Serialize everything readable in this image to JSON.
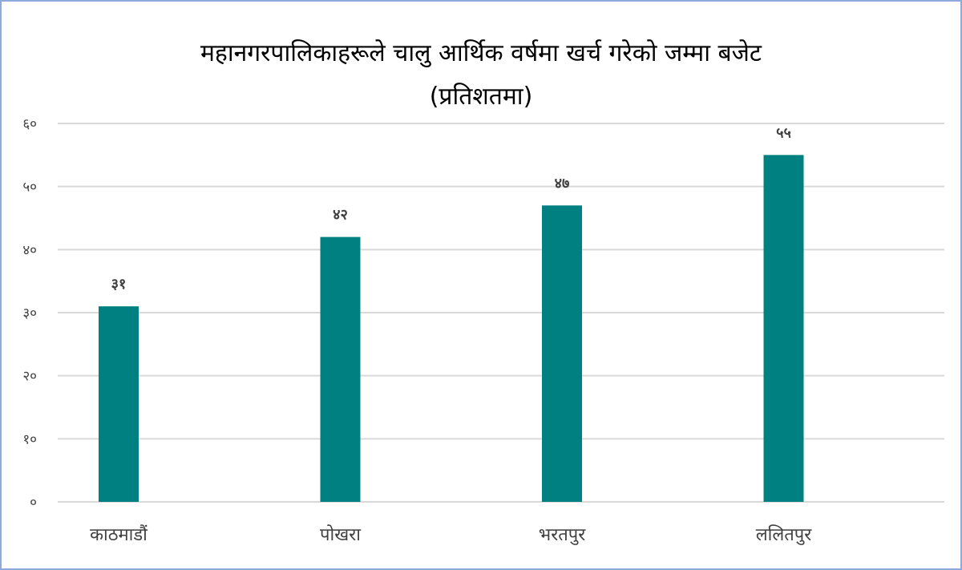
{
  "chart_data": {
    "type": "bar",
    "title_line1": "महानगरपालिकाहरूले चालु आर्थिक वर्षमा खर्च गरेको जम्मा बजेट",
    "title_line2": "(प्रतिशतमा)",
    "categories": [
      "काठमाडौं",
      "पोखरा",
      "भरतपुर",
      "ललितपुर"
    ],
    "values": [
      31,
      42,
      47,
      55
    ],
    "value_labels": [
      "३१",
      "४२",
      "४७",
      "५५"
    ],
    "y_ticks": [
      0,
      10,
      20,
      30,
      40,
      50,
      60
    ],
    "y_tick_labels": [
      "०",
      "१०",
      "२०",
      "३०",
      "४०",
      "५०",
      "६०"
    ],
    "ylim": [
      0,
      60
    ],
    "grid": true,
    "legend": "none",
    "xlabel": "",
    "ylabel": "",
    "bar_color": "#008080",
    "grid_color": "#d9d9d9"
  }
}
